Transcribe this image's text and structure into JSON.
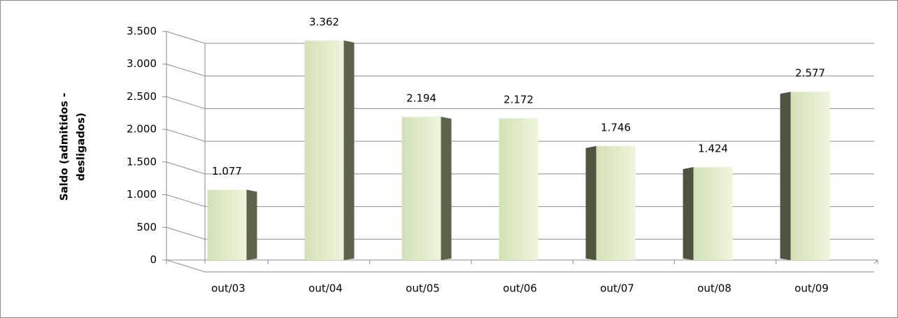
{
  "chart_data": {
    "type": "bar",
    "y_label": [
      "Saldo (admitidos -",
      "desligados)"
    ],
    "categories": [
      "out/03",
      "out/04",
      "out/05",
      "out/06",
      "out/07",
      "out/08",
      "out/09"
    ],
    "values": [
      1077,
      3362,
      2194,
      2172,
      1746,
      1424,
      2577
    ],
    "value_labels": [
      "1.077",
      "3.362",
      "2.194",
      "2.172",
      "1.746",
      "1.424",
      "2.577"
    ],
    "color": "#dde8c6",
    "ylim": [
      0,
      3500
    ],
    "yticks": [
      0,
      500,
      {
        "value": 1000,
        "label": "1.000"
      },
      {
        "value": 1500,
        "label": "1.500"
      },
      {
        "value": 2000,
        "label": "2.000"
      },
      {
        "value": 2500,
        "label": "2.500"
      },
      {
        "value": 3000,
        "label": "3.000"
      },
      {
        "value": 3500,
        "label": "3.500"
      }
    ],
    "grid": true
  }
}
